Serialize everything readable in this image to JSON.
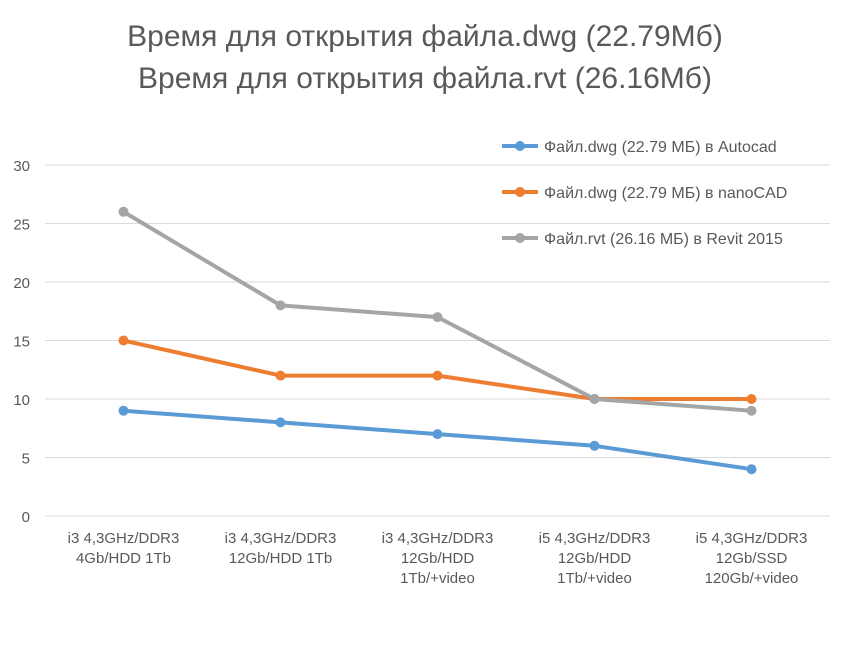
{
  "chart_data": {
    "type": "line",
    "title_lines": [
      "Время для открытия файла.dwg (22.79Мб)",
      "Время для открытия файла.rvt (26.16Мб)"
    ],
    "categories": [
      [
        "i3 4,3GHz/DDR3",
        "4Gb/HDD 1Tb"
      ],
      [
        "i3 4,3GHz/DDR3",
        "12Gb/HDD 1Tb"
      ],
      [
        "i3 4,3GHz/DDR3",
        "12Gb/HDD",
        "1Tb/+video"
      ],
      [
        "i5 4,3GHz/DDR3",
        "12Gb/HDD",
        "1Tb/+video"
      ],
      [
        "i5 4,3GHz/DDR3",
        "12Gb/SSD",
        "120Gb/+video"
      ]
    ],
    "ylim": [
      0,
      30
    ],
    "yticks": [
      0,
      5,
      10,
      15,
      20,
      25,
      30
    ],
    "grid": true,
    "legend_position": "top-right",
    "series": [
      {
        "name": "Файл.dwg (22.79  МБ) в Autocad",
        "color": "#5B9BD5",
        "values": [
          9,
          8,
          7,
          6,
          4
        ]
      },
      {
        "name": "Файл.dwg (22.79  МБ) в nanoCAD",
        "color": "#ED7D31",
        "values": [
          15,
          12,
          12,
          10,
          10
        ]
      },
      {
        "name": "Файл.rvt (26.16 МБ) в Revit 2015",
        "color": "#A5A5A5",
        "values": [
          26,
          18,
          17,
          10,
          9
        ]
      }
    ]
  }
}
